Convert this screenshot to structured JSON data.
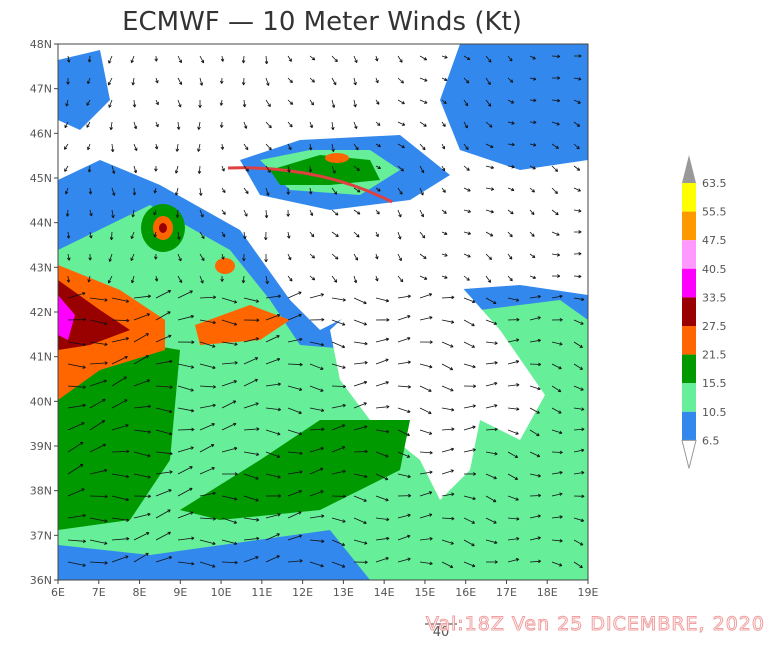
{
  "header": {
    "title": "ECMWF — 10 Meter Winds (Kt)"
  },
  "lat_labels": [
    "36N",
    "37N",
    "38N",
    "39N",
    "40N",
    "41N",
    "42N",
    "43N",
    "44N",
    "45N",
    "46N",
    "47N",
    "48N"
  ],
  "lon_labels": [
    "6E",
    "7E",
    "8E",
    "9E",
    "10E",
    "11E",
    "12E",
    "13E",
    "14E",
    "15E",
    "16E",
    "17E",
    "18E",
    "19E"
  ],
  "colorbar": [
    {
      "label": "63.5",
      "color": "#ffff00"
    },
    {
      "label": "55.5",
      "color": "#ff9900"
    },
    {
      "label": "47.5",
      "color": "#ff99ff"
    },
    {
      "label": "40.5",
      "color": "#ff00ff"
    },
    {
      "label": "33.5",
      "color": "#990000"
    },
    {
      "label": "27.5",
      "color": "#ff6600"
    },
    {
      "label": "21.5",
      "color": "#009900"
    },
    {
      "label": "15.5",
      "color": "#66ee99"
    },
    {
      "label": "10.5",
      "color": "#3388ee"
    },
    {
      "label": "6.5",
      "color": "#ffffff"
    }
  ],
  "vector_scale": {
    "label": "40"
  },
  "footer": {
    "valid_time": "Val:18Z Ven 25 DICEMBRE, 2020"
  }
}
